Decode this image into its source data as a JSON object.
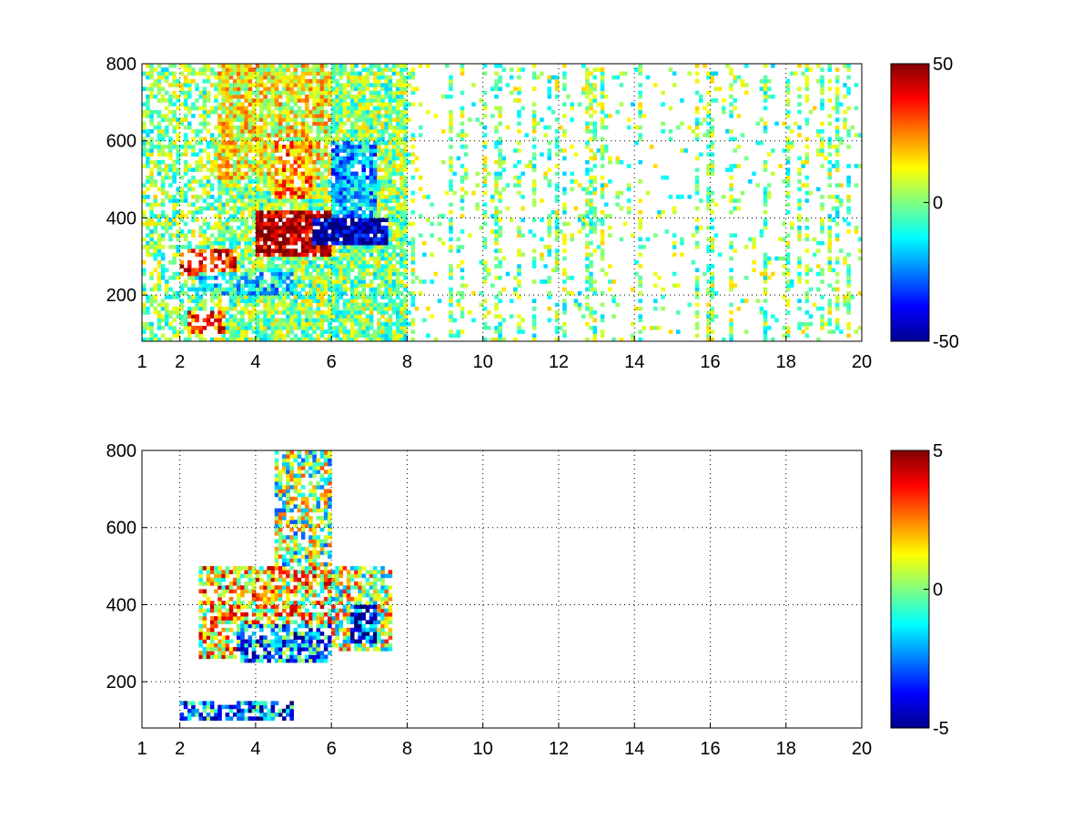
{
  "figure": {
    "background": "#ffffff",
    "colormap": "jet"
  },
  "chart_data": [
    {
      "type": "heatmap",
      "title": "",
      "xlabel": "",
      "ylabel": "",
      "xlim": [
        1,
        20
      ],
      "ylim": [
        80,
        800
      ],
      "x_ticks": [
        1,
        2,
        4,
        6,
        8,
        10,
        12,
        14,
        16,
        18,
        20
      ],
      "y_ticks": [
        200,
        400,
        600,
        800
      ],
      "grid": true,
      "grid_style": "dotted",
      "colorbar": {
        "position": "right",
        "min": -50,
        "max": 50,
        "ticks": [
          50,
          0,
          -50
        ]
      },
      "features": [
        {
          "x": [
            2.0,
            3.5
          ],
          "y": [
            250,
            320
          ],
          "value": 35
        },
        {
          "x": [
            2.2,
            3.2
          ],
          "y": [
            100,
            160
          ],
          "value": 30
        },
        {
          "x": [
            4.0,
            6.0
          ],
          "y": [
            300,
            420
          ],
          "value": 45
        },
        {
          "x": [
            5.5,
            7.5
          ],
          "y": [
            330,
            400
          ],
          "value": -45
        },
        {
          "x": [
            6.0,
            7.2
          ],
          "y": [
            400,
            600
          ],
          "value": -20
        },
        {
          "x": [
            3.0,
            6.0
          ],
          "y": [
            500,
            800
          ],
          "value": 12
        },
        {
          "x": [
            4.5,
            5.5
          ],
          "y": [
            450,
            600
          ],
          "value": 25
        },
        {
          "x": [
            2.5,
            5.0
          ],
          "y": [
            200,
            260
          ],
          "value": -15
        },
        {
          "x": [
            8.0,
            20.0
          ],
          "y": [
            80,
            800
          ],
          "value": 0
        }
      ]
    },
    {
      "type": "heatmap",
      "title": "",
      "xlabel": "",
      "ylabel": "",
      "xlim": [
        1,
        20
      ],
      "ylim": [
        80,
        800
      ],
      "x_ticks": [
        1,
        2,
        4,
        6,
        8,
        10,
        12,
        14,
        16,
        18,
        20
      ],
      "y_ticks": [
        200,
        400,
        600,
        800
      ],
      "grid": true,
      "grid_style": "dotted",
      "colorbar": {
        "position": "right",
        "min": -5,
        "max": 5,
        "ticks": [
          5,
          0,
          -5
        ]
      },
      "features": [
        {
          "x": [
            2.5,
            6.0
          ],
          "y": [
            260,
            500
          ],
          "value": 1.5
        },
        {
          "x": [
            3.5,
            6.0
          ],
          "y": [
            250,
            350
          ],
          "value": -2
        },
        {
          "x": [
            2.0,
            5.0
          ],
          "y": [
            100,
            150
          ],
          "value": -2.5
        },
        {
          "x": [
            6.0,
            7.6
          ],
          "y": [
            280,
            500
          ],
          "value": 0.5
        },
        {
          "x": [
            6.5,
            7.2
          ],
          "y": [
            300,
            400
          ],
          "value": -4
        },
        {
          "x": [
            4.5,
            6.0
          ],
          "y": [
            500,
            800
          ],
          "value": 0
        }
      ]
    }
  ]
}
